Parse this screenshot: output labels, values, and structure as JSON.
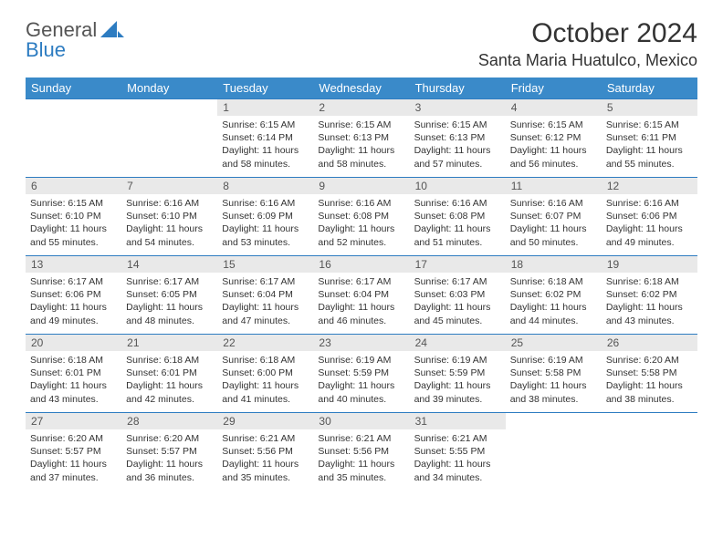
{
  "brand": {
    "part1": "General",
    "part2": "Blue"
  },
  "title": "October 2024",
  "location": "Santa Maria Huatulco, Mexico",
  "colors": {
    "header_bg": "#3a8ac9",
    "header_text": "#ffffff",
    "border": "#2d7cc1",
    "daynum_bg": "#e9e9e9",
    "text": "#333333",
    "brand_blue": "#2d7cc1"
  },
  "weekdays": [
    "Sunday",
    "Monday",
    "Tuesday",
    "Wednesday",
    "Thursday",
    "Friday",
    "Saturday"
  ],
  "first_weekday_index": 2,
  "days": [
    {
      "n": 1,
      "sunrise": "6:15 AM",
      "sunset": "6:14 PM",
      "daylight": "11 hours and 58 minutes."
    },
    {
      "n": 2,
      "sunrise": "6:15 AM",
      "sunset": "6:13 PM",
      "daylight": "11 hours and 58 minutes."
    },
    {
      "n": 3,
      "sunrise": "6:15 AM",
      "sunset": "6:13 PM",
      "daylight": "11 hours and 57 minutes."
    },
    {
      "n": 4,
      "sunrise": "6:15 AM",
      "sunset": "6:12 PM",
      "daylight": "11 hours and 56 minutes."
    },
    {
      "n": 5,
      "sunrise": "6:15 AM",
      "sunset": "6:11 PM",
      "daylight": "11 hours and 55 minutes."
    },
    {
      "n": 6,
      "sunrise": "6:15 AM",
      "sunset": "6:10 PM",
      "daylight": "11 hours and 55 minutes."
    },
    {
      "n": 7,
      "sunrise": "6:16 AM",
      "sunset": "6:10 PM",
      "daylight": "11 hours and 54 minutes."
    },
    {
      "n": 8,
      "sunrise": "6:16 AM",
      "sunset": "6:09 PM",
      "daylight": "11 hours and 53 minutes."
    },
    {
      "n": 9,
      "sunrise": "6:16 AM",
      "sunset": "6:08 PM",
      "daylight": "11 hours and 52 minutes."
    },
    {
      "n": 10,
      "sunrise": "6:16 AM",
      "sunset": "6:08 PM",
      "daylight": "11 hours and 51 minutes."
    },
    {
      "n": 11,
      "sunrise": "6:16 AM",
      "sunset": "6:07 PM",
      "daylight": "11 hours and 50 minutes."
    },
    {
      "n": 12,
      "sunrise": "6:16 AM",
      "sunset": "6:06 PM",
      "daylight": "11 hours and 49 minutes."
    },
    {
      "n": 13,
      "sunrise": "6:17 AM",
      "sunset": "6:06 PM",
      "daylight": "11 hours and 49 minutes."
    },
    {
      "n": 14,
      "sunrise": "6:17 AM",
      "sunset": "6:05 PM",
      "daylight": "11 hours and 48 minutes."
    },
    {
      "n": 15,
      "sunrise": "6:17 AM",
      "sunset": "6:04 PM",
      "daylight": "11 hours and 47 minutes."
    },
    {
      "n": 16,
      "sunrise": "6:17 AM",
      "sunset": "6:04 PM",
      "daylight": "11 hours and 46 minutes."
    },
    {
      "n": 17,
      "sunrise": "6:17 AM",
      "sunset": "6:03 PM",
      "daylight": "11 hours and 45 minutes."
    },
    {
      "n": 18,
      "sunrise": "6:18 AM",
      "sunset": "6:02 PM",
      "daylight": "11 hours and 44 minutes."
    },
    {
      "n": 19,
      "sunrise": "6:18 AM",
      "sunset": "6:02 PM",
      "daylight": "11 hours and 43 minutes."
    },
    {
      "n": 20,
      "sunrise": "6:18 AM",
      "sunset": "6:01 PM",
      "daylight": "11 hours and 43 minutes."
    },
    {
      "n": 21,
      "sunrise": "6:18 AM",
      "sunset": "6:01 PM",
      "daylight": "11 hours and 42 minutes."
    },
    {
      "n": 22,
      "sunrise": "6:18 AM",
      "sunset": "6:00 PM",
      "daylight": "11 hours and 41 minutes."
    },
    {
      "n": 23,
      "sunrise": "6:19 AM",
      "sunset": "5:59 PM",
      "daylight": "11 hours and 40 minutes."
    },
    {
      "n": 24,
      "sunrise": "6:19 AM",
      "sunset": "5:59 PM",
      "daylight": "11 hours and 39 minutes."
    },
    {
      "n": 25,
      "sunrise": "6:19 AM",
      "sunset": "5:58 PM",
      "daylight": "11 hours and 38 minutes."
    },
    {
      "n": 26,
      "sunrise": "6:20 AM",
      "sunset": "5:58 PM",
      "daylight": "11 hours and 38 minutes."
    },
    {
      "n": 27,
      "sunrise": "6:20 AM",
      "sunset": "5:57 PM",
      "daylight": "11 hours and 37 minutes."
    },
    {
      "n": 28,
      "sunrise": "6:20 AM",
      "sunset": "5:57 PM",
      "daylight": "11 hours and 36 minutes."
    },
    {
      "n": 29,
      "sunrise": "6:21 AM",
      "sunset": "5:56 PM",
      "daylight": "11 hours and 35 minutes."
    },
    {
      "n": 30,
      "sunrise": "6:21 AM",
      "sunset": "5:56 PM",
      "daylight": "11 hours and 35 minutes."
    },
    {
      "n": 31,
      "sunrise": "6:21 AM",
      "sunset": "5:55 PM",
      "daylight": "11 hours and 34 minutes."
    }
  ],
  "labels": {
    "sunrise": "Sunrise:",
    "sunset": "Sunset:",
    "daylight": "Daylight:"
  }
}
